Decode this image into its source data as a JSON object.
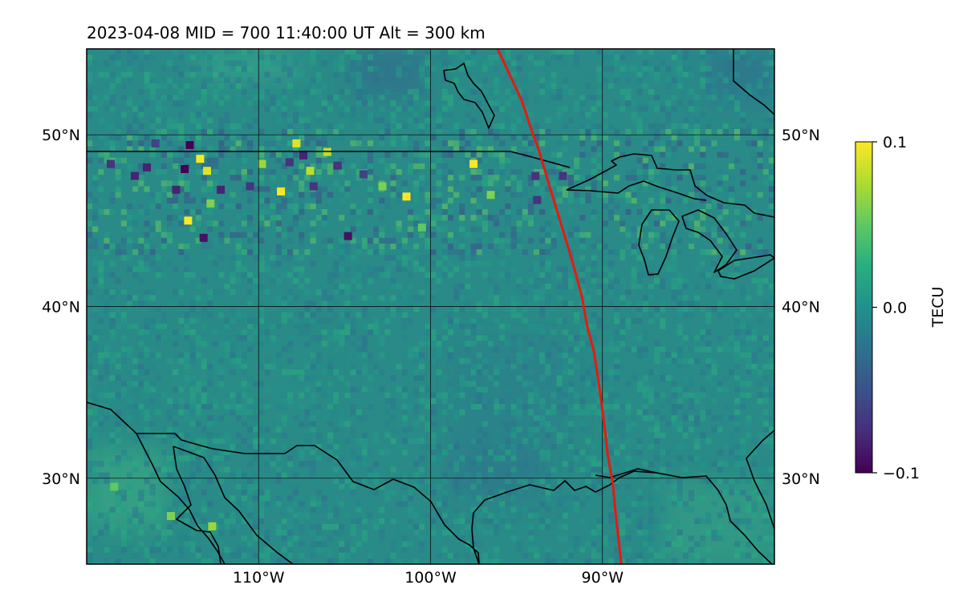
{
  "chart_data": {
    "type": "heatmap",
    "title": "2023-04-08  MID = 700    11:40:00  UT  Alt = 300 km",
    "xlim": [
      -120,
      -80
    ],
    "ylim": [
      25,
      55
    ],
    "x_ticks": [
      {
        "value": -110,
        "label": "110°W"
      },
      {
        "value": -100,
        "label": "100°W"
      },
      {
        "value": -90,
        "label": "90°W"
      }
    ],
    "y_ticks": [
      {
        "value": 30,
        "label": "30°N"
      },
      {
        "value": 40,
        "label": "40°N"
      },
      {
        "value": 50,
        "label": "50°N"
      }
    ],
    "grid": true,
    "colormap": "viridis",
    "colorbar": {
      "label": "TECU",
      "min": -0.1,
      "max": 0.1,
      "ticks": [
        {
          "value": 0.1,
          "label": "0.1"
        },
        {
          "value": 0.0,
          "label": "0.0"
        },
        {
          "value": -0.1,
          "label": "−0.1"
        }
      ]
    },
    "track": {
      "color": "#e8190f",
      "points": [
        [
          -96.1,
          55
        ],
        [
          -95.4,
          53.5
        ],
        [
          -94.7,
          52
        ],
        [
          -94.1,
          50.2
        ],
        [
          -93.7,
          49.1
        ],
        [
          -93.2,
          47.4
        ],
        [
          -92.5,
          45.1
        ],
        [
          -91.8,
          42.8
        ],
        [
          -91.2,
          40.6
        ],
        [
          -90.9,
          38.9
        ],
        [
          -90.5,
          37.4
        ],
        [
          -90.2,
          35.4
        ],
        [
          -89.9,
          33.2
        ],
        [
          -89.7,
          31.4
        ],
        [
          -89.4,
          29.7
        ],
        [
          -89.2,
          27.6
        ],
        [
          -88.9,
          25
        ]
      ]
    },
    "anomalies": [
      {
        "lon": -114.0,
        "lat": 49.4,
        "value": -0.1
      },
      {
        "lon": -113.4,
        "lat": 48.6,
        "value": 0.1
      },
      {
        "lon": -114.3,
        "lat": 48.0,
        "value": -0.1
      },
      {
        "lon": -113.0,
        "lat": 47.9,
        "value": 0.09
      },
      {
        "lon": -116.5,
        "lat": 48.1,
        "value": -0.08
      },
      {
        "lon": -117.2,
        "lat": 47.6,
        "value": -0.08
      },
      {
        "lon": -112.2,
        "lat": 46.8,
        "value": -0.08
      },
      {
        "lon": -114.8,
        "lat": 46.8,
        "value": -0.08
      },
      {
        "lon": -114.1,
        "lat": 45.0,
        "value": 0.1
      },
      {
        "lon": -113.2,
        "lat": 44.0,
        "value": -0.09
      },
      {
        "lon": -108.7,
        "lat": 46.7,
        "value": 0.1
      },
      {
        "lon": -108.2,
        "lat": 48.4,
        "value": -0.07
      },
      {
        "lon": -107.8,
        "lat": 49.5,
        "value": 0.09
      },
      {
        "lon": -107.4,
        "lat": 48.8,
        "value": -0.08
      },
      {
        "lon": -107.0,
        "lat": 47.9,
        "value": 0.08
      },
      {
        "lon": -106.0,
        "lat": 49.0,
        "value": 0.08
      },
      {
        "lon": -105.4,
        "lat": 48.2,
        "value": -0.07
      },
      {
        "lon": -106.8,
        "lat": 47.0,
        "value": -0.07
      },
      {
        "lon": -103.9,
        "lat": 47.7,
        "value": -0.06
      },
      {
        "lon": -104.8,
        "lat": 44.1,
        "value": -0.09
      },
      {
        "lon": -101.4,
        "lat": 46.4,
        "value": 0.1
      },
      {
        "lon": -97.5,
        "lat": 48.3,
        "value": 0.1
      },
      {
        "lon": -93.9,
        "lat": 47.6,
        "value": -0.07
      },
      {
        "lon": -92.3,
        "lat": 47.6,
        "value": -0.07
      },
      {
        "lon": -93.8,
        "lat": 46.2,
        "value": -0.07
      },
      {
        "lon": -118.6,
        "lat": 48.3,
        "value": -0.07
      },
      {
        "lon": -110.5,
        "lat": 47.0,
        "value": -0.07
      },
      {
        "lon": -112.8,
        "lat": 46.0,
        "value": 0.06
      },
      {
        "lon": -100.5,
        "lat": 44.6,
        "value": 0.05
      },
      {
        "lon": -115.1,
        "lat": 27.8,
        "value": 0.06
      },
      {
        "lon": -118.4,
        "lat": 29.5,
        "value": 0.05
      },
      {
        "lon": -112.7,
        "lat": 27.2,
        "value": 0.07
      },
      {
        "lon": -116.0,
        "lat": 49.5,
        "value": -0.06
      },
      {
        "lon": -109.8,
        "lat": 48.3,
        "value": 0.07
      },
      {
        "lon": -102.8,
        "lat": 47.0,
        "value": 0.06
      },
      {
        "lon": -96.5,
        "lat": 46.5,
        "value": 0.06
      }
    ]
  }
}
